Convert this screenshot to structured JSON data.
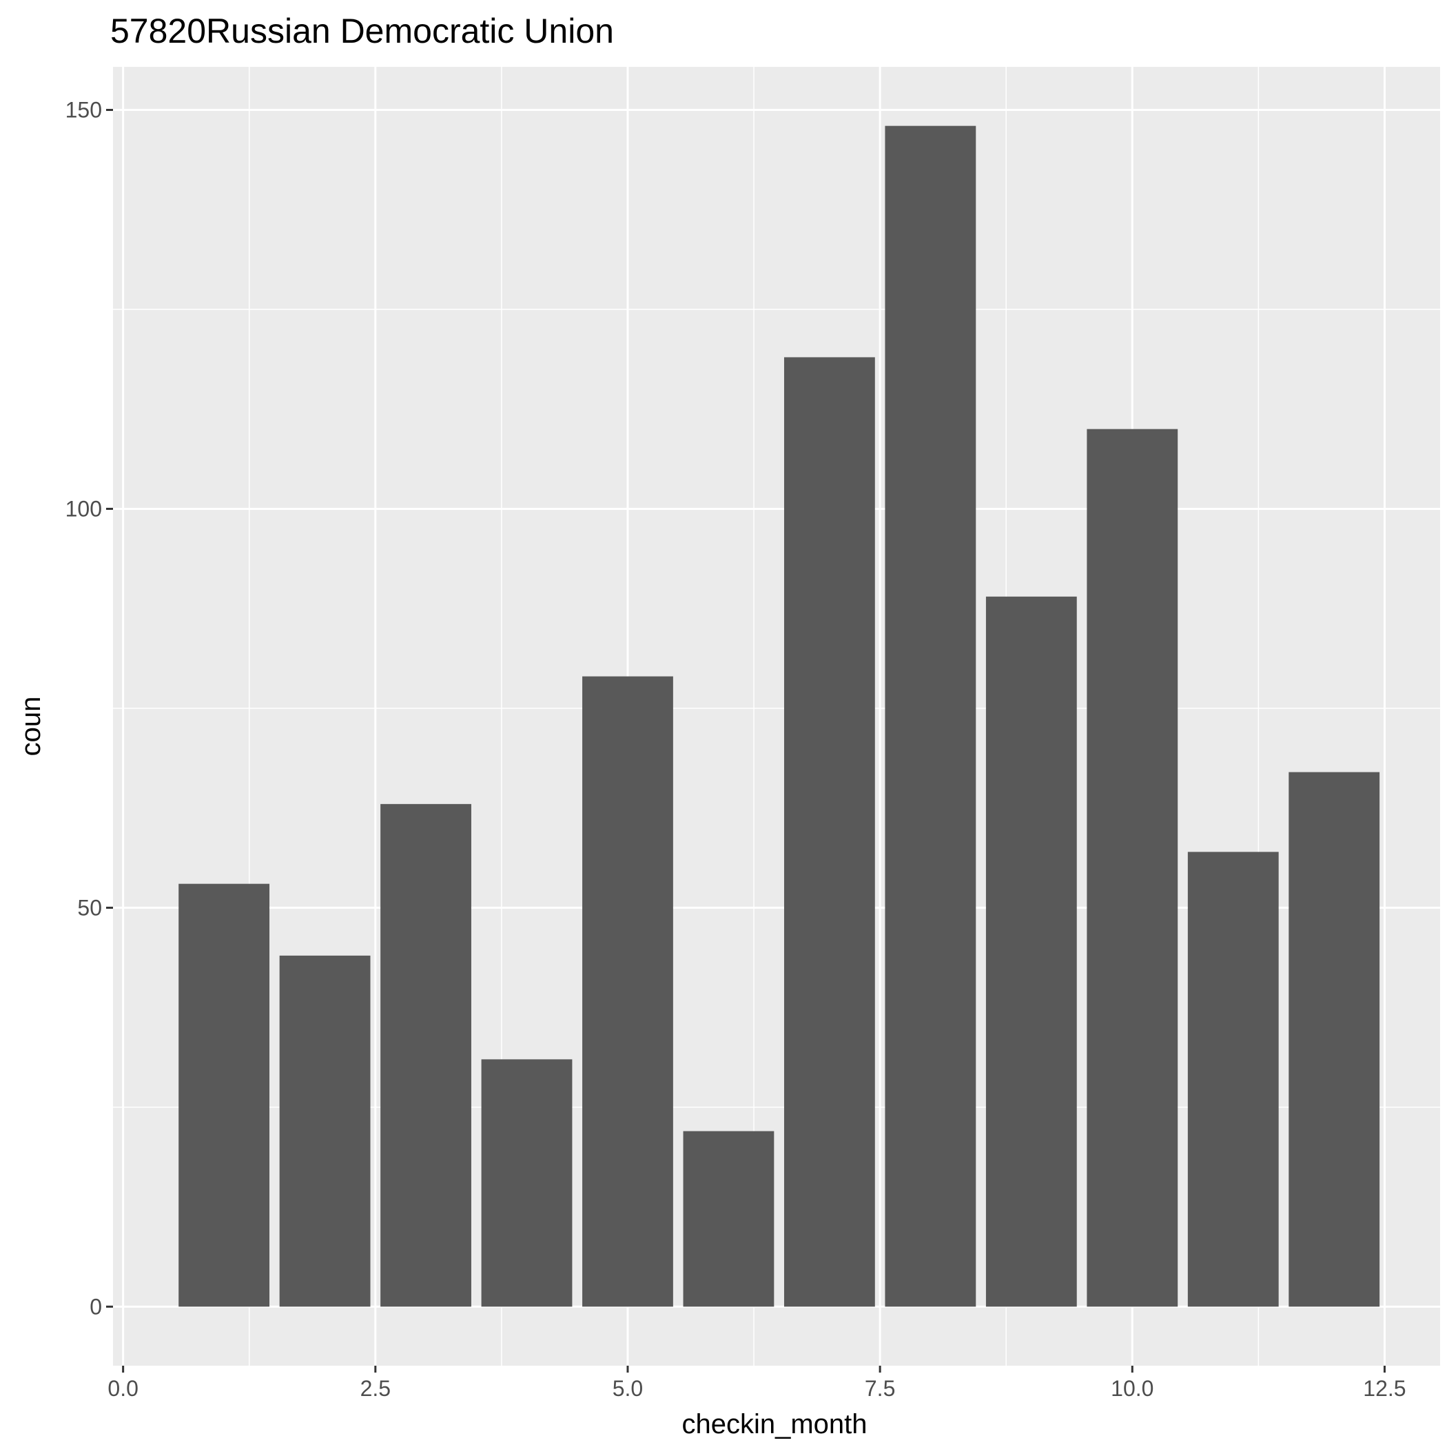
{
  "chart_data": {
    "type": "bar",
    "title": "57820Russian Democratic Union",
    "xlabel": "checkin_month",
    "ylabel": "coun",
    "x": [
      1,
      2,
      3,
      4,
      5,
      6,
      7,
      8,
      9,
      10,
      11,
      12
    ],
    "values": [
      53,
      44,
      63,
      31,
      79,
      22,
      119,
      148,
      89,
      110,
      57,
      67
    ],
    "bar_width": 0.9,
    "xlim": [
      -0.1,
      13.05
    ],
    "ylim": [
      -7.4,
      155.4
    ],
    "xticks": [
      0.0,
      2.5,
      5.0,
      7.5,
      10.0,
      12.5
    ],
    "xtick_labels": [
      "0.0",
      "2.5",
      "5.0",
      "7.5",
      "10.0",
      "12.5"
    ],
    "yticks": [
      0,
      50,
      100,
      150
    ],
    "ytick_labels": [
      "0",
      "50",
      "100",
      "150"
    ],
    "grid": true,
    "colors": {
      "panel_background": "#ebebeb",
      "grid_major": "#ffffff",
      "bar_fill": "#595959",
      "tick_mark": "#333333"
    }
  }
}
